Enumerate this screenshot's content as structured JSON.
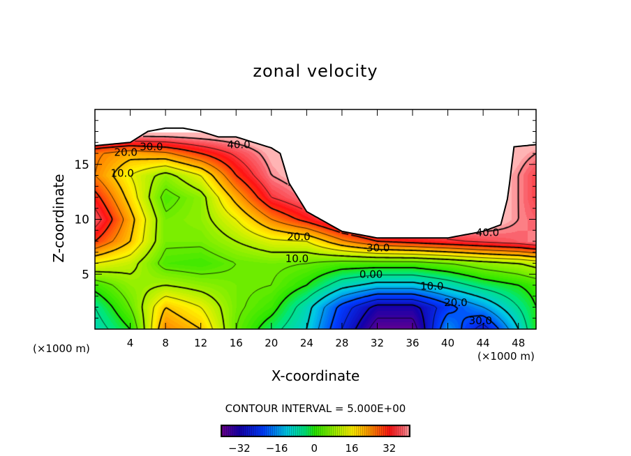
{
  "chart_data": {
    "type": "heatmap",
    "subtype": "filled-contour",
    "title": "zonal velocity",
    "xlabel": "X-coordinate",
    "ylabel": "Z-coordinate",
    "x_unit_label_left": "(×1000 m)",
    "x_unit_label_right": "(×1000 m)",
    "xlim": [
      0,
      50
    ],
    "ylim": [
      0,
      20
    ],
    "xticks": [
      "4",
      "8",
      "12",
      "16",
      "20",
      "24",
      "28",
      "32",
      "36",
      "40",
      "44",
      "48"
    ],
    "xtick_values": [
      4,
      8,
      12,
      16,
      20,
      24,
      28,
      32,
      36,
      40,
      44,
      48
    ],
    "yticks": [
      "5",
      "10",
      "15"
    ],
    "ytick_values": [
      5,
      10,
      15
    ],
    "contour_interval_label": "CONTOUR INTERVAL = 5.000E+00",
    "contour_interval": 5,
    "colorbar": {
      "range": [
        -40,
        41
      ],
      "ticks": [
        "−32",
        "−16",
        "0",
        "16",
        "32"
      ],
      "tick_values": [
        -32,
        -16,
        0,
        16,
        32
      ]
    },
    "grid_x": [
      0,
      4,
      8,
      12,
      16,
      20,
      24,
      28,
      32,
      36,
      40,
      44,
      48,
      50
    ],
    "grid_z": [
      0,
      2,
      4,
      6,
      8,
      10,
      12,
      14,
      16,
      18
    ],
    "values": [
      [
        -8,
        0,
        25,
        20,
        5,
        -3,
        -10,
        -25,
        -38,
        -38,
        -15,
        -28,
        -10,
        0
      ],
      [
        -5,
        5,
        20,
        15,
        6,
        2,
        -8,
        -22,
        -32,
        -32,
        -22,
        -15,
        -5,
        0
      ],
      [
        2,
        8,
        10,
        8,
        6,
        5,
        0,
        -8,
        -12,
        -12,
        -8,
        -3,
        0,
        2
      ],
      [
        15,
        12,
        3,
        2,
        5,
        6,
        5,
        3,
        3,
        3,
        5,
        8,
        10,
        12
      ],
      [
        30,
        20,
        6,
        6,
        10,
        14,
        15,
        24,
        30,
        32,
        34,
        36,
        38,
        40
      ],
      [
        38,
        22,
        6,
        8,
        15,
        25,
        32,
        40,
        44,
        45,
        45,
        45,
        40,
        38
      ],
      [
        32,
        18,
        3,
        8,
        22,
        35,
        40,
        44,
        45,
        45,
        45,
        45,
        40,
        36
      ],
      [
        25,
        15,
        8,
        15,
        30,
        40,
        44,
        45,
        45,
        45,
        45,
        45,
        40,
        36
      ],
      [
        26,
        22,
        24,
        30,
        36,
        42,
        45,
        45,
        45,
        45,
        45,
        45,
        42,
        40
      ],
      [
        45,
        45,
        45,
        45,
        45,
        45,
        45,
        45,
        45,
        45,
        45,
        45,
        45,
        45
      ]
    ],
    "top_boundary": {
      "x": [
        0,
        4,
        6,
        8,
        10,
        12,
        14,
        16,
        18,
        20,
        21,
        22,
        24,
        28,
        32,
        36,
        40,
        44,
        46,
        46.8,
        47.5,
        50
      ],
      "z": [
        16.7,
        17.0,
        18.0,
        18.3,
        18.3,
        18.0,
        17.5,
        17.5,
        17.0,
        16.5,
        16.0,
        13.3,
        10.7,
        8.9,
        8.3,
        8.3,
        8.3,
        8.9,
        9.5,
        12,
        16.6,
        16.8
      ]
    },
    "contour_labels": [
      {
        "text": "40.0",
        "x": 16.3,
        "z": 16.8
      },
      {
        "text": "30.0",
        "x": 6.4,
        "z": 16.6
      },
      {
        "text": "20.0",
        "x": 3.5,
        "z": 16.1
      },
      {
        "text": "10.0",
        "x": 3.1,
        "z": 14.2
      },
      {
        "text": "20.0",
        "x": 23.1,
        "z": 8.4
      },
      {
        "text": "30.0",
        "x": 32.1,
        "z": 7.4
      },
      {
        "text": "10.0",
        "x": 22.9,
        "z": 6.4
      },
      {
        "text": "0.00",
        "x": 31.3,
        "z": 5.0
      },
      {
        "text": "10.0",
        "x": 38.2,
        "z": 3.9
      },
      {
        "text": "20.0",
        "x": 40.9,
        "z": 2.4
      },
      {
        "text": "30.0",
        "x": 43.7,
        "z": 0.75
      },
      {
        "text": "40.0",
        "x": 44.5,
        "z": 8.8
      }
    ]
  }
}
